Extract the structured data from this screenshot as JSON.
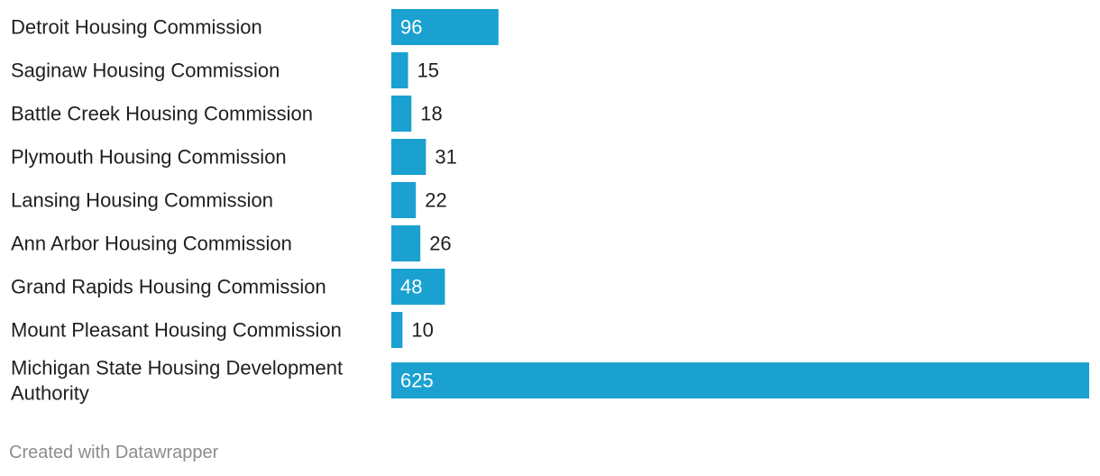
{
  "chart_data": {
    "type": "bar",
    "orientation": "horizontal",
    "title": "",
    "xlabel": "",
    "ylabel": "",
    "xlim": [
      0,
      625
    ],
    "grid": false,
    "legend": "none",
    "categories": [
      "Detroit Housing Commission",
      "Saginaw Housing Commission",
      "Battle Creek Housing Commission",
      "Plymouth Housing Commission",
      "Lansing Housing Commission",
      "Ann Arbor Housing Commission",
      "Grand Rapids Housing Commission",
      "Mount Pleasant Housing Commission",
      "Michigan State Housing Development Authority"
    ],
    "values": [
      96,
      15,
      18,
      31,
      22,
      26,
      48,
      10,
      625
    ],
    "bar_color": "#1aa1d0"
  },
  "footer": {
    "credit": "Created with Datawrapper"
  }
}
